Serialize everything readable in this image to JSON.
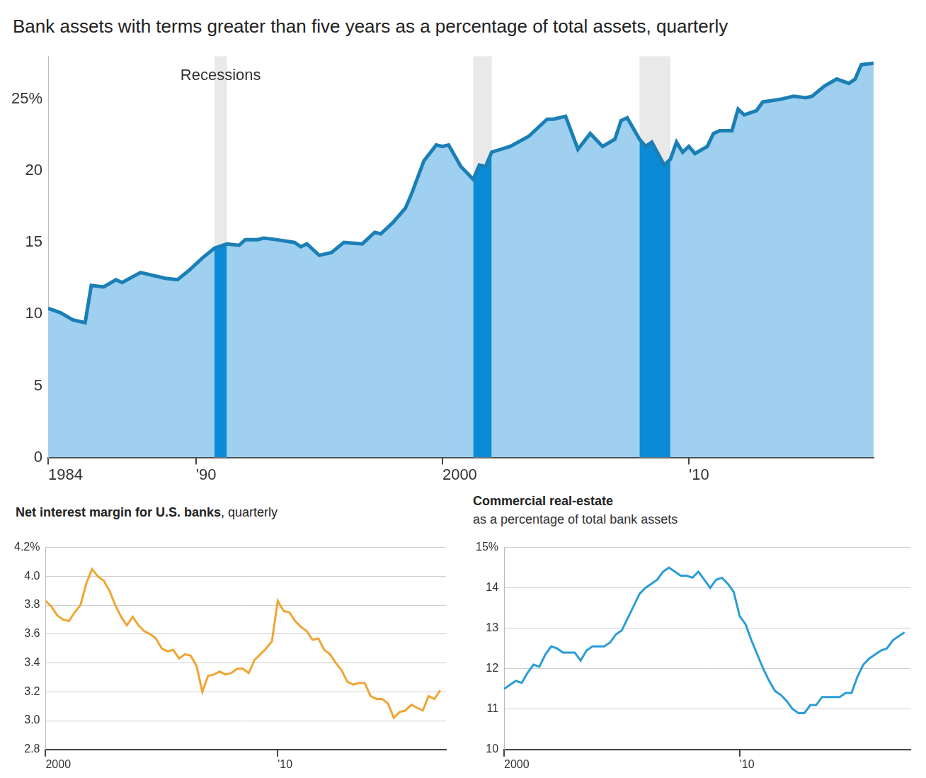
{
  "chart_data": [
    {
      "type": "area",
      "title": "Bank assets with terms greater than five years as a percentage of total assets, quarterly",
      "x": [
        1984.0,
        1984.5,
        1985.0,
        1985.5,
        1985.75,
        1986.25,
        1986.75,
        1987.0,
        1987.75,
        1988.75,
        1989.25,
        1989.75,
        1990.25,
        1990.75,
        1991.25,
        1991.75,
        1992.0,
        1992.5,
        1992.75,
        1993.25,
        1994.0,
        1994.25,
        1994.5,
        1995.0,
        1995.5,
        1996.0,
        1996.75,
        1997.25,
        1997.5,
        1998.0,
        1998.5,
        1998.75,
        1999.25,
        1999.75,
        2000.0,
        2000.25,
        2000.75,
        2001.25,
        2001.5,
        2001.75,
        2002.0,
        2002.75,
        2003.5,
        2004.25,
        2004.5,
        2005.0,
        2005.5,
        2006.0,
        2006.5,
        2007.0,
        2007.25,
        2007.5,
        2008.0,
        2008.25,
        2008.5,
        2009.0,
        2009.25,
        2009.5,
        2009.75,
        2010.0,
        2010.25,
        2010.75,
        2011.0,
        2011.25,
        2011.75,
        2012.0,
        2012.25,
        2012.75,
        2013.0,
        2013.75,
        2014.25,
        2014.75,
        2015.0,
        2015.5,
        2016.0,
        2016.5,
        2016.75,
        2017.0,
        2017.5
      ],
      "values": [
        10.4,
        10.1,
        9.6,
        9.4,
        12.0,
        11.9,
        12.4,
        12.2,
        12.9,
        12.5,
        12.4,
        13.1,
        13.9,
        14.6,
        14.9,
        14.8,
        15.2,
        15.2,
        15.3,
        15.2,
        15.0,
        14.7,
        14.9,
        14.1,
        14.3,
        15.0,
        14.9,
        15.7,
        15.6,
        16.4,
        17.4,
        18.4,
        20.7,
        21.8,
        21.7,
        21.8,
        20.3,
        19.4,
        20.4,
        20.3,
        21.3,
        21.7,
        22.4,
        23.6,
        23.6,
        23.8,
        21.5,
        22.6,
        21.7,
        22.2,
        23.5,
        23.7,
        22.2,
        21.7,
        22.0,
        20.4,
        20.8,
        22.0,
        21.3,
        21.7,
        21.2,
        21.7,
        22.6,
        22.8,
        22.8,
        24.3,
        23.9,
        24.2,
        24.8,
        25.0,
        25.2,
        25.1,
        25.2,
        25.9,
        26.4,
        26.1,
        26.4,
        27.4,
        27.5
      ],
      "color": "#1b7fb6",
      "xlim": [
        1984,
        2017.5
      ],
      "xticks": [
        {
          "value": 1984,
          "label": "1984"
        },
        {
          "value": 1990,
          "label": "'90"
        },
        {
          "value": 2000,
          "label": "2000"
        },
        {
          "value": 2010,
          "label": "'10"
        }
      ],
      "ylim": [
        0,
        28
      ],
      "yticks": [
        0,
        5,
        10,
        15,
        20,
        {
          "value": 25,
          "label": "25%"
        }
      ],
      "grid": true,
      "recessions": {
        "label": "Recessions",
        "periods": [
          [
            1990.75,
            1991.25
          ],
          [
            2001.25,
            2002.0
          ],
          [
            2008.0,
            2009.25
          ]
        ]
      }
    },
    {
      "type": "line",
      "title": "Net interest margin for U.S. banks, quarterly",
      "x": [
        2000.0,
        2000.25,
        2000.5,
        2000.75,
        2001.0,
        2001.25,
        2001.5,
        2001.75,
        2002.0,
        2002.25,
        2002.5,
        2002.75,
        2003.0,
        2003.25,
        2003.5,
        2003.75,
        2004.0,
        2004.25,
        2004.5,
        2004.75,
        2005.0,
        2005.25,
        2005.5,
        2005.75,
        2006.0,
        2006.25,
        2006.5,
        2006.75,
        2007.0,
        2007.25,
        2007.5,
        2007.75,
        2008.0,
        2008.25,
        2008.5,
        2008.75,
        2009.0,
        2009.25,
        2009.5,
        2009.75,
        2010.0,
        2010.25,
        2010.5,
        2010.75,
        2011.0,
        2011.25,
        2011.5,
        2011.75,
        2012.0,
        2012.25,
        2012.5,
        2012.75,
        2013.0,
        2013.25,
        2013.5,
        2013.75,
        2014.0,
        2014.25,
        2014.5,
        2014.75,
        2015.0,
        2015.25,
        2015.5,
        2015.75,
        2016.0,
        2016.25,
        2016.5,
        2016.75,
        2017.0
      ],
      "values": [
        3.83,
        3.79,
        3.73,
        3.7,
        3.69,
        3.75,
        3.8,
        3.95,
        4.05,
        4.0,
        3.97,
        3.9,
        3.8,
        3.72,
        3.66,
        3.72,
        3.66,
        3.62,
        3.6,
        3.57,
        3.5,
        3.48,
        3.49,
        3.43,
        3.46,
        3.45,
        3.38,
        3.2,
        3.31,
        3.32,
        3.34,
        3.32,
        3.33,
        3.36,
        3.36,
        3.33,
        3.42,
        3.46,
        3.5,
        3.55,
        3.83,
        3.76,
        3.75,
        3.69,
        3.65,
        3.62,
        3.56,
        3.57,
        3.49,
        3.46,
        3.4,
        3.35,
        3.27,
        3.25,
        3.26,
        3.26,
        3.17,
        3.15,
        3.15,
        3.12,
        3.02,
        3.06,
        3.07,
        3.11,
        3.09,
        3.07,
        3.17,
        3.15,
        3.21
      ],
      "color": "#f0a534",
      "xlim": [
        2000,
        2017.25
      ],
      "xticks": [
        {
          "value": 2000,
          "label": "2000"
        },
        {
          "value": 2010,
          "label": "'10"
        }
      ],
      "ylim": [
        2.8,
        4.2
      ],
      "yticks": [
        2.8,
        {
          "value": 3,
          "label": "3.0"
        },
        3.2,
        3.4,
        3.6,
        3.8,
        {
          "value": 4,
          "label": "4.0"
        },
        {
          "value": 4.2,
          "label": "4.2%"
        }
      ],
      "grid": true
    },
    {
      "type": "line",
      "title": "Commercial real-estate",
      "subtitle": "as a percentage of total bank assets",
      "x": [
        2000.0,
        2000.25,
        2000.5,
        2000.75,
        2001.0,
        2001.25,
        2001.5,
        2001.75,
        2002.0,
        2002.25,
        2002.5,
        2002.75,
        2003.0,
        2003.25,
        2003.5,
        2003.75,
        2004.0,
        2004.25,
        2004.5,
        2004.75,
        2005.0,
        2005.25,
        2005.5,
        2005.75,
        2006.0,
        2006.25,
        2006.5,
        2006.75,
        2007.0,
        2007.25,
        2007.5,
        2007.75,
        2008.0,
        2008.25,
        2008.5,
        2008.75,
        2009.0,
        2009.25,
        2009.5,
        2009.75,
        2010.0,
        2010.25,
        2010.5,
        2010.75,
        2011.0,
        2011.25,
        2011.5,
        2011.75,
        2012.0,
        2012.25,
        2012.5,
        2012.75,
        2013.0,
        2013.25,
        2013.5,
        2013.75,
        2014.0,
        2014.25,
        2014.5,
        2014.75,
        2015.0,
        2015.25,
        2015.5,
        2015.75,
        2016.0,
        2016.25,
        2016.5,
        2016.75,
        2017.0
      ],
      "values": [
        11.5,
        11.6,
        11.7,
        11.65,
        11.9,
        12.1,
        12.05,
        12.35,
        12.55,
        12.5,
        12.4,
        12.4,
        12.4,
        12.2,
        12.45,
        12.55,
        12.55,
        12.55,
        12.65,
        12.85,
        12.95,
        13.25,
        13.55,
        13.85,
        14.0,
        14.1,
        14.2,
        14.4,
        14.5,
        14.4,
        14.3,
        14.3,
        14.25,
        14.4,
        14.2,
        14.0,
        14.2,
        14.25,
        14.1,
        13.9,
        13.3,
        13.1,
        12.7,
        12.35,
        12.0,
        11.7,
        11.45,
        11.35,
        11.2,
        11.0,
        10.9,
        10.9,
        11.1,
        11.1,
        11.3,
        11.3,
        11.3,
        11.3,
        11.4,
        11.4,
        11.8,
        12.1,
        12.25,
        12.35,
        12.45,
        12.5,
        12.7,
        12.8,
        12.9
      ],
      "color": "#2a9dd8",
      "xlim": [
        2000,
        2017.25
      ],
      "xticks": [
        {
          "value": 2000,
          "label": "2000"
        },
        {
          "value": 2010,
          "label": "'10"
        }
      ],
      "ylim": [
        10,
        15
      ],
      "yticks": [
        10,
        11,
        12,
        13,
        14,
        {
          "value": 15,
          "label": "15%"
        }
      ],
      "grid": true
    }
  ]
}
